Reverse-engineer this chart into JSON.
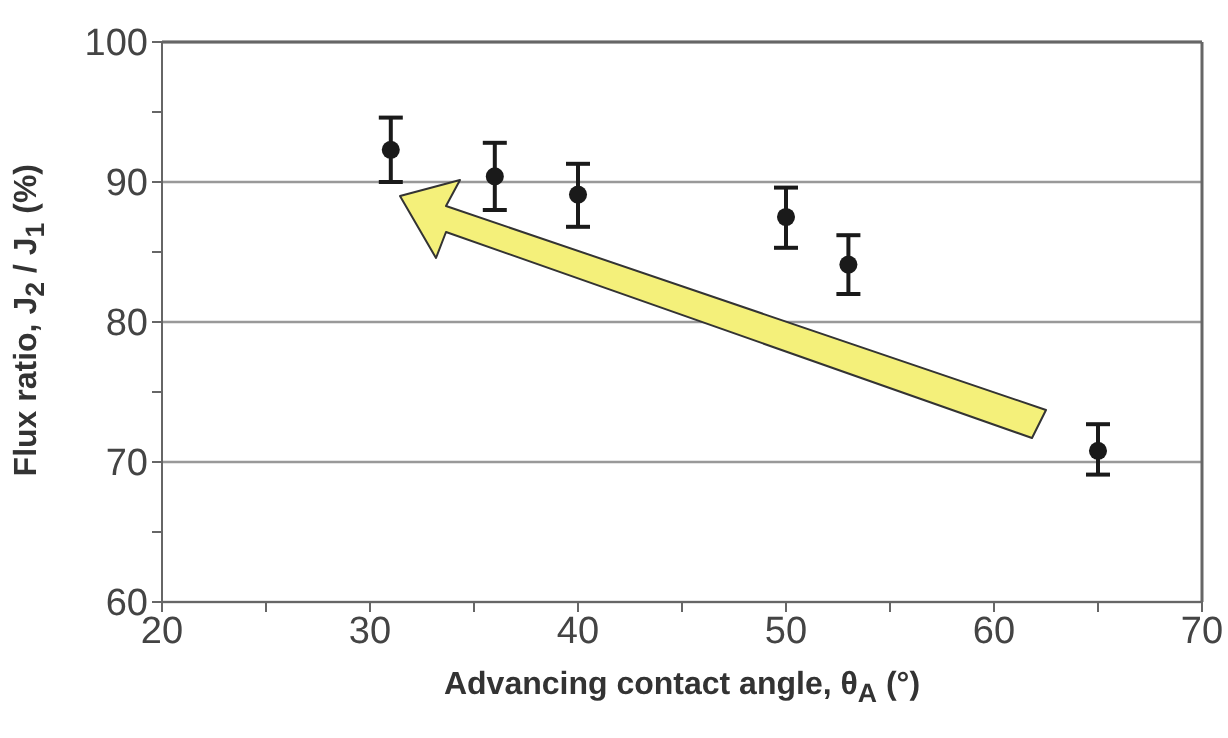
{
  "chart_data": {
    "type": "scatter",
    "xlabel": "Advancing contact angle, θ$_{A}$ (°)",
    "ylabel": "Flux ratio, J$_{2}$ / J$_{1}$ (%)",
    "x": [
      31,
      36,
      40,
      50,
      53,
      65
    ],
    "values": [
      92.3,
      90.4,
      89.1,
      87.5,
      84.1,
      70.8
    ],
    "errors": [
      [
        90,
        94.6
      ],
      [
        88,
        92.8
      ],
      [
        86.8,
        91.3
      ],
      [
        85.3,
        89.6
      ],
      [
        82,
        86.2
      ],
      [
        69.1,
        72.7
      ]
    ],
    "color": "#1a1a1a",
    "marker": "circle",
    "xlim": [
      20,
      70
    ],
    "xticks": [
      20,
      {
        "value": 25,
        "label": null
      },
      30,
      {
        "value": 35,
        "label": null
      },
      40,
      {
        "value": 45,
        "label": null
      },
      50,
      {
        "value": 55,
        "label": null
      },
      60,
      {
        "value": 65,
        "label": null
      },
      70
    ],
    "ylim": [
      60,
      100
    ],
    "yticks": [
      60,
      {
        "value": 65,
        "label": null
      },
      70,
      {
        "value": 75,
        "label": null
      },
      80,
      {
        "value": 85,
        "label": null
      },
      90,
      {
        "value": 95,
        "label": null
      },
      100
    ],
    "grid": "y"
  }
}
